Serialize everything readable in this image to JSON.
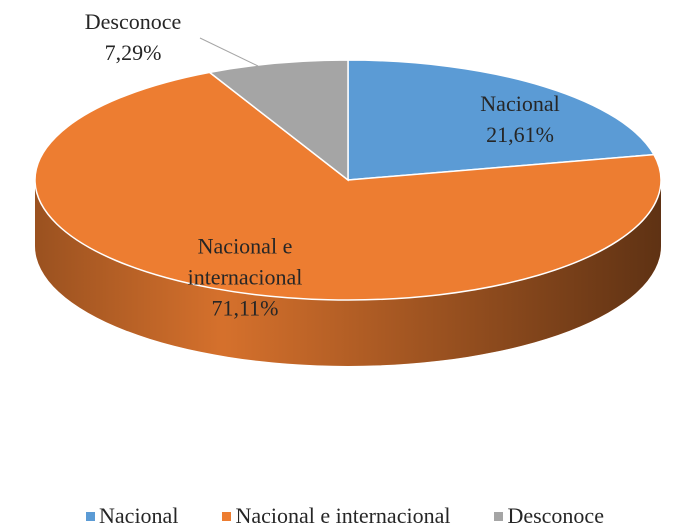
{
  "chart_data": {
    "type": "pie",
    "categories": [
      "Nacional",
      "Nacional e internacional",
      "Desconoce"
    ],
    "values": [
      21.61,
      71.11,
      7.29
    ],
    "value_labels": [
      "21,61%",
      "71,11%",
      "7,29%"
    ],
    "colors": [
      "#5b9bd5",
      "#ed7d31",
      "#a5a5a5"
    ],
    "legend": "bottom"
  }
}
